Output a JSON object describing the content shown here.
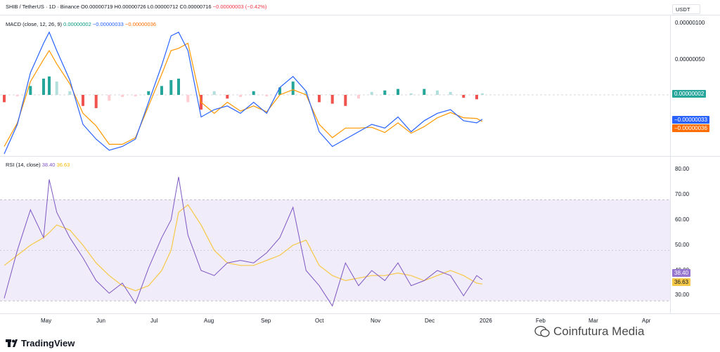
{
  "header": {
    "symbol_text": "SHIB / TetherUS · 1D · Binance",
    "ohlc_text": "O0.00000719 H0.00000726 L0.00000712 C0.00000716",
    "change_text": "−0.00000003 (−0.42%)",
    "currency": "USDT"
  },
  "macd": {
    "legend_title": "MACD (close, 12, 26, 9)",
    "hist_value": "0.00000002",
    "macd_value": "−0.00000033",
    "signal_value": "−0.00000036",
    "axis_ticks": [
      "0.00000100",
      "0.00000050"
    ],
    "tag_hist": "0.00000002",
    "tag_macd": "−0.00000033",
    "tag_signal": "−0.00000036"
  },
  "rsi": {
    "legend_title": "RSI (14, close)",
    "rsi_value": "38.40",
    "ma_value": "36.63",
    "axis_ticks": [
      "80.00",
      "70.00",
      "60.00",
      "50.00",
      "40.00",
      "30.00"
    ],
    "tag_rsi": "38.40",
    "tag_ma": "36.63"
  },
  "time_axis": {
    "months": [
      "May",
      "Jun",
      "Jul",
      "Aug",
      "Sep",
      "Oct",
      "Nov",
      "Dec",
      "2026",
      "Feb",
      "Mar",
      "Apr"
    ]
  },
  "branding": {
    "logo": "TradingView",
    "watermark": "Coinfutura Media"
  },
  "colors": {
    "hist_pos_strong": "#26a69a",
    "hist_pos_weak": "#b2dfdb",
    "hist_neg_strong": "#ef5350",
    "hist_neg_weak": "#ffcdd2",
    "macd_line": "#2962ff",
    "signal_line": "#ff9800",
    "rsi_line": "#7e57c2",
    "rsi_ma_line": "#f7c948",
    "rsi_band": "#f0ecfa"
  },
  "chart_data": [
    {
      "type": "line",
      "title": "MACD (close, 12, 26, 9)",
      "x": [
        "2025-04-18",
        "2025-04-25",
        "2025-05-02",
        "2025-05-09",
        "2025-05-12",
        "2025-05-16",
        "2025-05-23",
        "2025-05-30",
        "2025-06-06",
        "2025-06-13",
        "2025-06-20",
        "2025-06-27",
        "2025-07-04",
        "2025-07-11",
        "2025-07-16",
        "2025-07-20",
        "2025-07-25",
        "2025-08-01",
        "2025-08-08",
        "2025-08-15",
        "2025-08-22",
        "2025-08-29",
        "2025-09-05",
        "2025-09-12",
        "2025-09-19",
        "2025-09-26",
        "2025-10-03",
        "2025-10-10",
        "2025-10-17",
        "2025-10-24",
        "2025-10-31",
        "2025-11-07",
        "2025-11-14",
        "2025-11-21",
        "2025-11-28",
        "2025-12-05",
        "2025-12-12",
        "2025-12-19",
        "2025-12-26",
        "2025-12-29"
      ],
      "series": [
        {
          "name": "Histogram",
          "values": [
            -1e-07,
            -2e-08,
            1.2e-07,
            2.2e-07,
            2.5e-07,
            1.8e-07,
            5e-08,
            -1.5e-07,
            -1.8e-07,
            -8e-08,
            -3e-08,
            -2e-08,
            5e-08,
            1.2e-07,
            2e-07,
            2.2e-07,
            -1e-07,
            -2e-07,
            5e-08,
            -5e-08,
            -3e-08,
            5e-08,
            -2e-08,
            1e-07,
            1.8e-07,
            5e-08,
            -1e-07,
            -1.2e-07,
            -1.5e-07,
            -5e-08,
            4e-08,
            6e-08,
            8e-08,
            2e-08,
            8e-08,
            6e-08,
            4e-08,
            -4e-08,
            -6e-08,
            2e-08
          ]
        },
        {
          "name": "MACD",
          "values": [
            -8e-07,
            -4e-07,
            3e-07,
            7e-07,
            8.5e-07,
            6e-07,
            2e-07,
            -4e-07,
            -6e-07,
            -7.5e-07,
            -7e-07,
            -6e-07,
            -1e-07,
            4e-07,
            8e-07,
            8.5e-07,
            6e-07,
            -3e-07,
            -2e-07,
            -1.5e-07,
            -2.5e-07,
            -1e-07,
            -2.5e-07,
            1e-07,
            2.5e-07,
            5e-08,
            -5e-07,
            -7e-07,
            -6e-07,
            -5e-07,
            -4e-07,
            -4.5e-07,
            -3e-07,
            -5e-07,
            -3.5e-07,
            -2.5e-07,
            -2e-07,
            -3.5e-07,
            -3.8e-07,
            -3.3e-07
          ]
        },
        {
          "name": "Signal",
          "values": [
            -7e-07,
            -3.8e-07,
            1.8e-07,
            4.8e-07,
            6e-07,
            4.2e-07,
            1.5e-07,
            -2.5e-07,
            -4.2e-07,
            -6.7e-07,
            -6.7e-07,
            -5.8e-07,
            -1.5e-07,
            2.8e-07,
            6e-07,
            6.3e-07,
            7e-07,
            -1e-07,
            -2.5e-07,
            -1e-07,
            -2.2e-07,
            -1.5e-07,
            -2.3e-07,
            0.0,
            7e-08,
            0.0,
            -4e-07,
            -5.8e-07,
            -4.5e-07,
            -4.5e-07,
            -4.4e-07,
            -5.1e-07,
            -3.8e-07,
            -5.2e-07,
            -4.3e-07,
            -3.1e-07,
            -2.4e-07,
            -3.1e-07,
            -3.2e-07,
            -3.6e-07
          ]
        }
      ]
    },
    {
      "type": "line",
      "title": "RSI (14, close)",
      "x": [
        "2025-04-18",
        "2025-04-25",
        "2025-05-02",
        "2025-05-09",
        "2025-05-12",
        "2025-05-16",
        "2025-05-23",
        "2025-05-30",
        "2025-06-06",
        "2025-06-13",
        "2025-06-20",
        "2025-06-27",
        "2025-07-04",
        "2025-07-11",
        "2025-07-16",
        "2025-07-20",
        "2025-07-25",
        "2025-08-01",
        "2025-08-08",
        "2025-08-15",
        "2025-08-22",
        "2025-08-29",
        "2025-09-05",
        "2025-09-12",
        "2025-09-19",
        "2025-09-26",
        "2025-10-03",
        "2025-10-10",
        "2025-10-17",
        "2025-10-24",
        "2025-10-31",
        "2025-11-07",
        "2025-11-14",
        "2025-11-21",
        "2025-11-28",
        "2025-12-05",
        "2025-12-12",
        "2025-12-19",
        "2025-12-26",
        "2025-12-29"
      ],
      "ylim": [
        27,
        82
      ],
      "bands": [
        30,
        70
      ],
      "series": [
        {
          "name": "RSI",
          "values": [
            31,
            50,
            66,
            55,
            78,
            65,
            55,
            47,
            38,
            33,
            37,
            29,
            43,
            55,
            62,
            79,
            56,
            42,
            40,
            45,
            46,
            45,
            49,
            55,
            67,
            42,
            36,
            28,
            45,
            36,
            42,
            38,
            45,
            36,
            38,
            42,
            40,
            32,
            40,
            38.4
          ]
        },
        {
          "name": "RSI-based MA",
          "values": [
            44,
            48,
            52,
            55,
            57,
            60,
            58,
            52,
            45,
            40,
            36,
            34,
            36,
            42,
            50,
            65,
            68,
            60,
            50,
            45,
            44,
            44,
            46,
            48,
            52,
            54,
            44,
            40,
            38,
            39,
            40,
            40,
            41,
            40,
            38,
            40,
            42,
            40,
            37,
            36.63
          ]
        }
      ]
    }
  ]
}
